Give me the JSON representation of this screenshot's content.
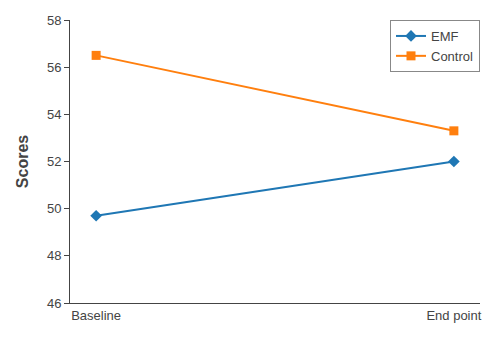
{
  "chart_data": {
    "type": "line",
    "categories": [
      "Baseline",
      "End point"
    ],
    "series": [
      {
        "name": "EMF",
        "values": [
          49.7,
          52.0
        ],
        "marker": "diamond"
      },
      {
        "name": "Control",
        "values": [
          56.5,
          53.3
        ],
        "marker": "square"
      }
    ],
    "y_label": "Scores",
    "ylim": [
      46,
      58
    ],
    "yticks": [
      46,
      48,
      50,
      52,
      54,
      56,
      58
    ],
    "grid": false,
    "legend": "upper right"
  }
}
